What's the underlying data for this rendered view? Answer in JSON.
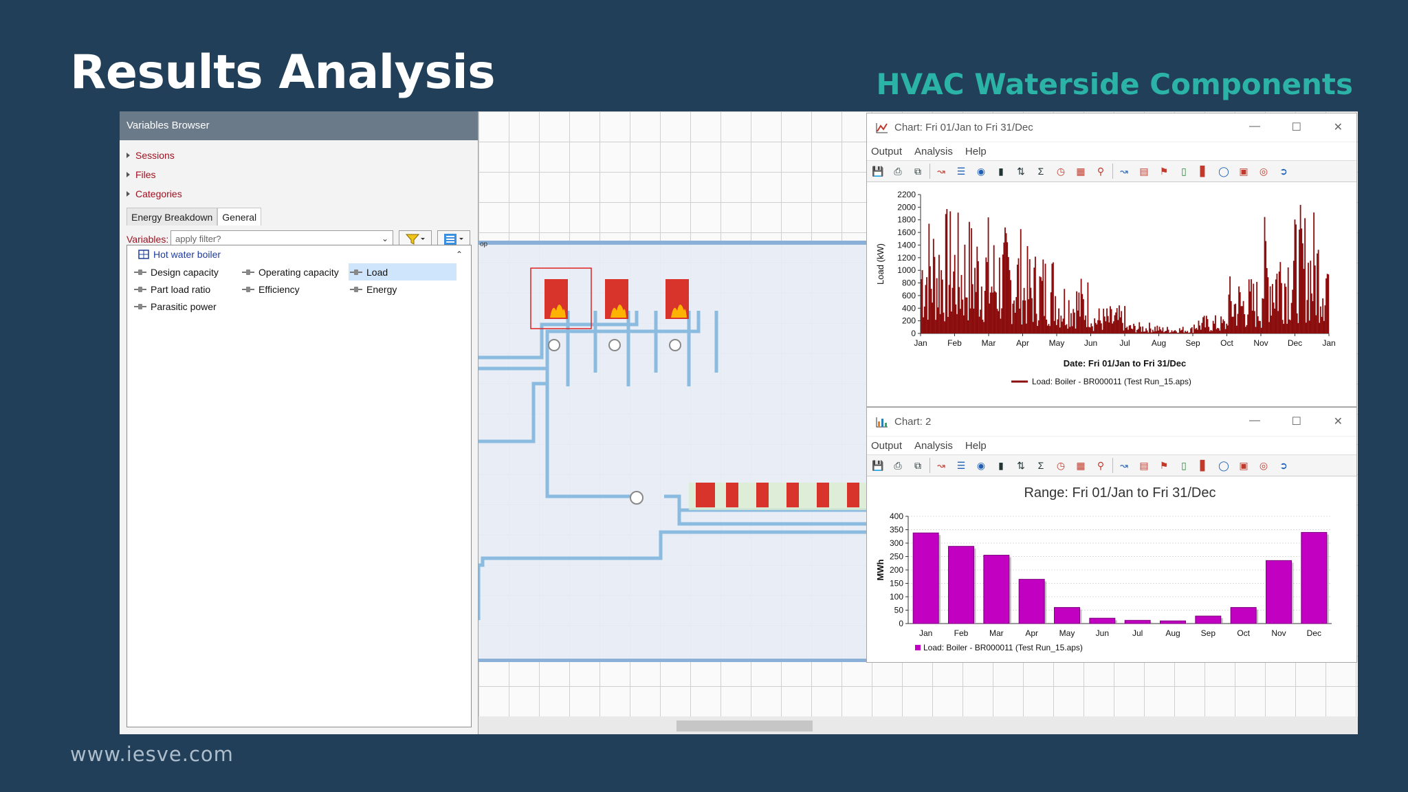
{
  "slide": {
    "title": "Results Analysis",
    "subtitle": "HVAC Waterside Components",
    "footer": "www.iesve.com"
  },
  "variables_browser": {
    "header": "Variables Browser",
    "tree": [
      "Sessions",
      "Files",
      "Categories"
    ],
    "tabs": [
      "Energy Breakdown",
      "General"
    ],
    "active_tab": "General",
    "filter_label": "Variables:",
    "filter_placeholder": "apply filter?",
    "group": "Hot water boiler",
    "variables": [
      "Design capacity",
      "Operating capacity",
      "Load",
      "Part load ratio",
      "Efficiency",
      "Energy",
      "Parasitic power"
    ],
    "selected_variable": "Load"
  },
  "canvas": {
    "loop_label": "op"
  },
  "chart1_window": {
    "title": "Chart: Fri 01/Jan to Fri 31/Dec",
    "menu": [
      "Output",
      "Analysis",
      "Help"
    ],
    "toolbar_icons": [
      "save-icon",
      "print-icon",
      "copy-icon",
      "sep",
      "line-chart-icon",
      "list-icon",
      "camera-icon",
      "bar-icon",
      "rank-icon",
      "sum-icon",
      "clock-icon",
      "calendar-icon",
      "zoom-icon",
      "sep",
      "multi-chart-icon",
      "stack-icon",
      "flag-icon",
      "histogram-icon",
      "bars-icon",
      "ring-icon",
      "heatmap-icon",
      "target-icon",
      "exit-icon"
    ]
  },
  "chart2_window": {
    "title": "Chart: 2",
    "menu": [
      "Output",
      "Analysis",
      "Help"
    ],
    "toolbar_icons": [
      "save-icon",
      "print-icon",
      "copy-icon",
      "sep",
      "line-chart-icon",
      "list-icon",
      "camera-icon",
      "bar-icon",
      "rank-icon",
      "sum-icon",
      "clock-icon",
      "calendar-icon",
      "zoom-icon",
      "sep",
      "multi-chart-icon",
      "stack-icon",
      "flag-icon",
      "histogram-icon",
      "bars-icon",
      "ring-icon",
      "heatmap-icon",
      "target-icon",
      "exit-icon"
    ]
  },
  "colors": {
    "series1": "#8b0d0d",
    "series2": "#c200c2",
    "accent": "#2bb3a8"
  },
  "chart_data": [
    {
      "type": "area",
      "title": "",
      "xlabel": "Date: Fri 01/Jan to Fri 31/Dec",
      "ylabel": "Load (kW)",
      "ylim": [
        0,
        2200
      ],
      "yticks": [
        0,
        200,
        400,
        600,
        800,
        1000,
        1200,
        1400,
        1600,
        1800,
        2000,
        2200
      ],
      "xticks": [
        "Jan",
        "Feb",
        "Mar",
        "Apr",
        "May",
        "Jun",
        "Jul",
        "Aug",
        "Sep",
        "Oct",
        "Nov",
        "Dec",
        "Jan"
      ],
      "monthly_peak_kw": [
        2050,
        1950,
        1750,
        1400,
        950,
        450,
        180,
        120,
        300,
        950,
        1900,
        2050
      ],
      "series": [
        {
          "name": "Load: Boiler - BR000011 (Test Run_15.aps)",
          "values_note": ""
        }
      ],
      "legend": "bottom"
    },
    {
      "type": "bar",
      "title": "Range: Fri 01/Jan to Fri 31/Dec",
      "xlabel": "",
      "ylabel": "MWh",
      "ylim": [
        0,
        400
      ],
      "yticks": [
        0,
        50,
        100,
        150,
        200,
        250,
        300,
        350,
        400
      ],
      "categories": [
        "Jan",
        "Feb",
        "Mar",
        "Apr",
        "May",
        "Jun",
        "Jul",
        "Aug",
        "Sep",
        "Oct",
        "Nov",
        "Dec"
      ],
      "series": [
        {
          "name": "Load: Boiler - BR000011 (Test Run_15.aps)",
          "values": [
            338,
            288,
            255,
            165,
            60,
            20,
            12,
            10,
            28,
            60,
            235,
            340
          ]
        }
      ],
      "legend": "bottom"
    }
  ]
}
